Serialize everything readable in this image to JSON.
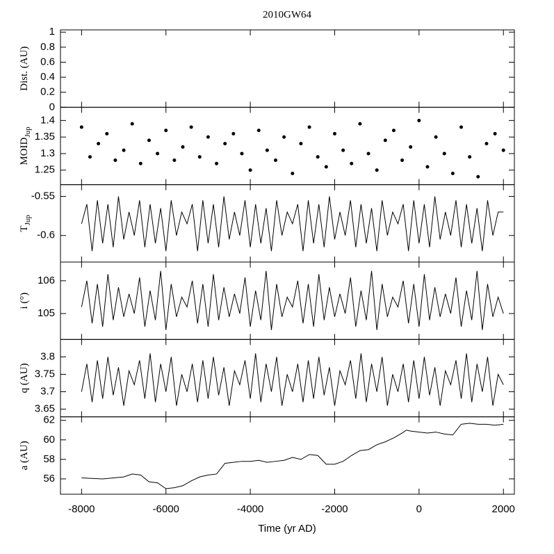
{
  "title": "2010GW64",
  "x_axis": {
    "label": "Time (yr AD)",
    "xlim": [
      -8500,
      2260
    ],
    "xticks": [
      -8000,
      -6000,
      -4000,
      -2000,
      0,
      2000
    ]
  },
  "chart_data": [
    {
      "type": "line",
      "ylabel": "Dist. (AU)",
      "ylim": [
        0,
        1.03
      ],
      "yticks": [
        0,
        0.2,
        0.4,
        0.6,
        0.8,
        1
      ]
    },
    {
      "type": "scatter",
      "ylabel": "MOID",
      "ylabel_subscript": "Jup",
      "ylim": [
        1.206,
        1.44
      ],
      "yticks": [
        1.25,
        1.3,
        1.35,
        1.4
      ],
      "x": [
        -8000,
        -7800,
        -7600,
        -7400,
        -7200,
        -7000,
        -6800,
        -6600,
        -6400,
        -6200,
        -6000,
        -5800,
        -5600,
        -5400,
        -5200,
        -5000,
        -4800,
        -4600,
        -4400,
        -4200,
        -4000,
        -3800,
        -3600,
        -3400,
        -3200,
        -3000,
        -2800,
        -2600,
        -2400,
        -2200,
        -2000,
        -1800,
        -1600,
        -1400,
        -1200,
        -1000,
        -800,
        -600,
        -400,
        -200,
        0,
        200,
        400,
        600,
        800,
        1000,
        1200,
        1400,
        1600,
        1800,
        2000
      ],
      "values": [
        1.38,
        1.29,
        1.33,
        1.36,
        1.28,
        1.31,
        1.39,
        1.27,
        1.34,
        1.3,
        1.37,
        1.28,
        1.32,
        1.38,
        1.29,
        1.35,
        1.27,
        1.33,
        1.36,
        1.3,
        1.25,
        1.37,
        1.31,
        1.28,
        1.35,
        1.24,
        1.33,
        1.38,
        1.29,
        1.26,
        1.36,
        1.31,
        1.27,
        1.39,
        1.3,
        1.25,
        1.34,
        1.37,
        1.28,
        1.32,
        1.4,
        1.26,
        1.35,
        1.3,
        1.24,
        1.38,
        1.29,
        1.23,
        1.33,
        1.36,
        1.31
      ]
    },
    {
      "type": "line",
      "ylabel": "T",
      "ylabel_subscript": "Jup",
      "ylim": [
        -0.634,
        -0.535
      ],
      "yticks": [
        -0.55,
        -0.6
      ],
      "x": [
        -8000,
        -7875,
        -7750,
        -7625,
        -7500,
        -7375,
        -7250,
        -7125,
        -7000,
        -6875,
        -6750,
        -6625,
        -6500,
        -6375,
        -6250,
        -6125,
        -6000,
        -5875,
        -5750,
        -5625,
        -5500,
        -5375,
        -5250,
        -5125,
        -5000,
        -4875,
        -4750,
        -4625,
        -4500,
        -4375,
        -4250,
        -4125,
        -4000,
        -3875,
        -3750,
        -3625,
        -3500,
        -3375,
        -3250,
        -3125,
        -3000,
        -2875,
        -2750,
        -2625,
        -2500,
        -2375,
        -2250,
        -2125,
        -2000,
        -1875,
        -1750,
        -1625,
        -1500,
        -1375,
        -1250,
        -1125,
        -1000,
        -875,
        -750,
        -625,
        -500,
        -375,
        -250,
        -125,
        0,
        125,
        250,
        375,
        500,
        625,
        750,
        875,
        1000,
        1125,
        1250,
        1375,
        1500,
        1625,
        1750,
        1875,
        2000
      ],
      "values": [
        -0.585,
        -0.56,
        -0.62,
        -0.555,
        -0.61,
        -0.56,
        -0.615,
        -0.55,
        -0.605,
        -0.57,
        -0.6,
        -0.555,
        -0.615,
        -0.56,
        -0.61,
        -0.565,
        -0.62,
        -0.555,
        -0.6,
        -0.57,
        -0.585,
        -0.56,
        -0.62,
        -0.555,
        -0.61,
        -0.56,
        -0.615,
        -0.55,
        -0.605,
        -0.57,
        -0.6,
        -0.555,
        -0.615,
        -0.56,
        -0.61,
        -0.565,
        -0.62,
        -0.555,
        -0.6,
        -0.57,
        -0.585,
        -0.56,
        -0.62,
        -0.555,
        -0.61,
        -0.56,
        -0.615,
        -0.55,
        -0.605,
        -0.57,
        -0.6,
        -0.555,
        -0.615,
        -0.56,
        -0.61,
        -0.565,
        -0.62,
        -0.555,
        -0.6,
        -0.57,
        -0.585,
        -0.56,
        -0.62,
        -0.555,
        -0.61,
        -0.56,
        -0.615,
        -0.55,
        -0.605,
        -0.57,
        -0.6,
        -0.555,
        -0.615,
        -0.56,
        -0.61,
        -0.565,
        -0.62,
        -0.555,
        -0.6,
        -0.57,
        -0.57
      ]
    },
    {
      "type": "line",
      "ylabel": "i (°)",
      "ylim": [
        104.21,
        106.57
      ],
      "yticks": [
        105,
        106
      ],
      "x": [
        -8000,
        -7875,
        -7750,
        -7625,
        -7500,
        -7375,
        -7250,
        -7125,
        -7000,
        -6875,
        -6750,
        -6625,
        -6500,
        -6375,
        -6250,
        -6125,
        -6000,
        -5875,
        -5750,
        -5625,
        -5500,
        -5375,
        -5250,
        -5125,
        -5000,
        -4875,
        -4750,
        -4625,
        -4500,
        -4375,
        -4250,
        -4125,
        -4000,
        -3875,
        -3750,
        -3625,
        -3500,
        -3375,
        -3250,
        -3125,
        -3000,
        -2875,
        -2750,
        -2625,
        -2500,
        -2375,
        -2250,
        -2125,
        -2000,
        -1875,
        -1750,
        -1625,
        -1500,
        -1375,
        -1250,
        -1125,
        -1000,
        -875,
        -750,
        -625,
        -500,
        -375,
        -250,
        -125,
        0,
        125,
        250,
        375,
        500,
        625,
        750,
        875,
        1000,
        1125,
        1250,
        1375,
        1500,
        1625,
        1750,
        1875,
        2000
      ],
      "values": [
        105.2,
        106.0,
        104.7,
        105.9,
        104.6,
        106.2,
        104.8,
        105.8,
        104.9,
        105.6,
        105.0,
        106.1,
        104.6,
        105.7,
        104.8,
        106.3,
        104.5,
        105.9,
        104.9,
        105.5,
        105.2,
        106.0,
        104.7,
        105.9,
        104.6,
        106.2,
        104.8,
        105.8,
        104.9,
        105.6,
        105.0,
        106.1,
        104.6,
        105.7,
        104.8,
        106.3,
        104.5,
        105.9,
        104.9,
        105.5,
        105.2,
        106.0,
        104.7,
        105.9,
        104.6,
        106.2,
        104.8,
        105.8,
        104.9,
        105.6,
        105.0,
        106.1,
        104.6,
        105.7,
        104.8,
        106.3,
        104.5,
        105.9,
        104.9,
        105.5,
        105.2,
        106.0,
        104.7,
        105.9,
        104.6,
        106.2,
        104.8,
        105.8,
        104.9,
        105.6,
        105.0,
        106.1,
        104.6,
        105.7,
        104.8,
        106.3,
        104.5,
        105.9,
        104.9,
        105.5,
        105.0
      ]
    },
    {
      "type": "line",
      "ylabel": "q (AU)",
      "ylim": [
        3.628,
        3.85
      ],
      "yticks": [
        3.65,
        3.7,
        3.75,
        3.8
      ],
      "x": [
        -8000,
        -7875,
        -7750,
        -7625,
        -7500,
        -7375,
        -7250,
        -7125,
        -7000,
        -6875,
        -6750,
        -6625,
        -6500,
        -6375,
        -6250,
        -6125,
        -6000,
        -5875,
        -5750,
        -5625,
        -5500,
        -5375,
        -5250,
        -5125,
        -5000,
        -4875,
        -4750,
        -4625,
        -4500,
        -4375,
        -4250,
        -4125,
        -4000,
        -3875,
        -3750,
        -3625,
        -3500,
        -3375,
        -3250,
        -3125,
        -3000,
        -2875,
        -2750,
        -2625,
        -2500,
        -2375,
        -2250,
        -2125,
        -2000,
        -1875,
        -1750,
        -1625,
        -1500,
        -1375,
        -1250,
        -1125,
        -1000,
        -875,
        -750,
        -625,
        -500,
        -375,
        -250,
        -125,
        0,
        125,
        250,
        375,
        500,
        625,
        750,
        875,
        1000,
        1125,
        1250,
        1375,
        1500,
        1625,
        1750,
        1875,
        2000
      ],
      "values": [
        3.7,
        3.78,
        3.67,
        3.79,
        3.68,
        3.8,
        3.69,
        3.77,
        3.66,
        3.76,
        3.72,
        3.79,
        3.68,
        3.81,
        3.67,
        3.78,
        3.7,
        3.8,
        3.66,
        3.75,
        3.7,
        3.78,
        3.67,
        3.79,
        3.68,
        3.8,
        3.69,
        3.77,
        3.66,
        3.76,
        3.72,
        3.79,
        3.68,
        3.81,
        3.67,
        3.78,
        3.7,
        3.8,
        3.66,
        3.75,
        3.7,
        3.78,
        3.67,
        3.79,
        3.68,
        3.8,
        3.69,
        3.77,
        3.66,
        3.76,
        3.72,
        3.79,
        3.68,
        3.81,
        3.67,
        3.78,
        3.7,
        3.8,
        3.66,
        3.75,
        3.7,
        3.78,
        3.67,
        3.79,
        3.68,
        3.8,
        3.69,
        3.77,
        3.66,
        3.76,
        3.72,
        3.79,
        3.68,
        3.81,
        3.67,
        3.78,
        3.7,
        3.8,
        3.66,
        3.75,
        3.72
      ]
    },
    {
      "type": "line",
      "ylabel": "a (AU)",
      "ylim": [
        54.43,
        62.36
      ],
      "yticks": [
        56,
        58,
        60,
        62
      ],
      "x": [
        -8000,
        -7500,
        -7000,
        -6800,
        -6600,
        -6400,
        -6200,
        -6000,
        -5800,
        -5600,
        -5400,
        -5200,
        -5000,
        -4800,
        -4600,
        -4400,
        -4200,
        -4000,
        -3800,
        -3600,
        -3400,
        -3200,
        -3000,
        -2800,
        -2600,
        -2400,
        -2200,
        -2000,
        -1800,
        -1600,
        -1400,
        -1200,
        -1000,
        -800,
        -600,
        -400,
        -300,
        -200,
        0,
        200,
        400,
        600,
        800,
        1000,
        1200,
        1400,
        1600,
        1800,
        2000
      ],
      "values": [
        56.1,
        56.0,
        56.2,
        56.5,
        56.4,
        55.7,
        55.6,
        55.0,
        55.1,
        55.3,
        55.8,
        56.2,
        56.4,
        56.5,
        57.6,
        57.7,
        57.8,
        57.8,
        57.9,
        57.7,
        57.8,
        57.9,
        58.2,
        58.0,
        58.5,
        58.4,
        57.5,
        57.5,
        57.8,
        58.4,
        58.9,
        59.0,
        59.5,
        59.8,
        60.2,
        60.7,
        61.0,
        60.9,
        60.8,
        60.7,
        60.8,
        60.6,
        60.5,
        61.6,
        61.7,
        61.6,
        61.6,
        61.5,
        61.6
      ]
    }
  ]
}
